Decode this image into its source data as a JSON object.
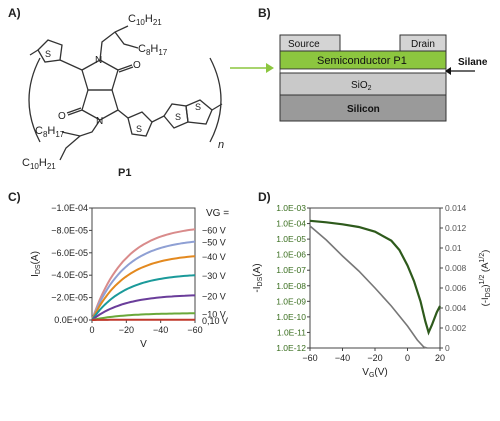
{
  "panels": {
    "a": {
      "label": "A)"
    },
    "b": {
      "label": "B)"
    },
    "c": {
      "label": "C)"
    },
    "d": {
      "label": "D)"
    }
  },
  "molecule": {
    "name": "P1",
    "repeat_n": "n",
    "chain_top": [
      "C",
      "10",
      "H",
      "21"
    ],
    "chain_top2": [
      "C",
      "8",
      "H",
      "17"
    ],
    "chain_bot": [
      "C",
      "8",
      "H",
      "17"
    ],
    "chain_bot2": [
      "C",
      "10",
      "H",
      "21"
    ],
    "atoms": {
      "N1": "N",
      "N2": "N",
      "O1": "O",
      "O2": "O",
      "S1": "S",
      "S2": "S",
      "S3": "S",
      "S4": "S"
    }
  },
  "device": {
    "source": "Source",
    "drain": "Drain",
    "semiconductor": "Semiconductor P1",
    "silane": "Silane",
    "sio2": "SiO",
    "sio2_sub": "2",
    "silicon": "Silicon",
    "colors": {
      "semiconductor": "#8cc63f",
      "electrode": "#d4d4d4",
      "silicon": "#9a9a9a",
      "sio2": "#c9c9c9",
      "arrow": "#8cc63f"
    }
  },
  "chart_data": [
    {
      "type": "line",
      "ylabel": "I",
      "ylabel_sub": "DS",
      "ylabel_unit": "(A)",
      "xlabel": "V",
      "legend_title": "VG =",
      "x_ticks": [
        "0",
        "−20",
        "−40",
        "−60"
      ],
      "y_ticks": [
        "0.0E+00",
        "−2.0E-05",
        "−4.0E-05",
        "−6.0E-05",
        "−8.0E-05",
        "−1.0E-04"
      ],
      "xlim": [
        0,
        -60
      ],
      "ylim": [
        0,
        -0.0001
      ],
      "series": [
        {
          "name": "−60 V",
          "sat": -8.1e-05,
          "color": "#d98b8b"
        },
        {
          "name": "−50 V",
          "sat": -7e-05,
          "color": "#8fa0d4"
        },
        {
          "name": "−40 V",
          "sat": -5.7e-05,
          "color": "#e3891f"
        },
        {
          "name": "−30 V",
          "sat": -4e-05,
          "color": "#1b9a9a"
        },
        {
          "name": "−20 V",
          "sat": -2.2e-05,
          "color": "#6a3d9a"
        },
        {
          "name": "−10 V",
          "sat": -6e-06,
          "color": "#6aa83a"
        },
        {
          "name": "0,10 V",
          "sat": -3e-07,
          "color": "#c0392b"
        }
      ]
    },
    {
      "type": "line",
      "ylabel_left": "-I",
      "ylabel_left_sub": "DS",
      "ylabel_left_unit": "(A)",
      "ylabel_right": "(-I",
      "ylabel_right_sub": "DS",
      "ylabel_right_rest": ")",
      "ylabel_right_sup": "1/2",
      "ylabel_right_unit": " (A",
      "ylabel_right_unit_sup": "1/2",
      "ylabel_right_unit_end": ")",
      "xlabel": "V",
      "xlabel_sub": "G",
      "xlabel_unit": "(V)",
      "x_ticks": [
        "−60",
        "−40",
        "−20",
        "0",
        "20"
      ],
      "y_left_ticks": [
        "1.0E-03",
        "1.0E-04",
        "1.0E-05",
        "1.0E-06",
        "1.0E-07",
        "1.0E-08",
        "1.0E-09",
        "1.0E-10",
        "1.0E-11",
        "1.0E-12"
      ],
      "y_right_ticks": [
        "0.014",
        "0.012",
        "0.01",
        "0.008",
        "0.006",
        "0.004",
        "0.002",
        "0"
      ],
      "xlim": [
        -60,
        20
      ],
      "y_left_log_range": [
        -12,
        -3
      ],
      "y_right_range": [
        0,
        0.014
      ],
      "log_curve": {
        "color": "#2e5a1c",
        "points": [
          [
            -60,
            0.00015
          ],
          [
            -50,
            0.00012
          ],
          [
            -40,
            9e-05
          ],
          [
            -30,
            6e-05
          ],
          [
            -20,
            3e-05
          ],
          [
            -10,
            8e-06
          ],
          [
            -5,
            2e-06
          ],
          [
            0,
            2e-07
          ],
          [
            4,
            2e-08
          ],
          [
            8,
            1e-09
          ],
          [
            11,
            5e-11
          ],
          [
            13,
            1e-11
          ],
          [
            15,
            3e-11
          ],
          [
            18,
            2e-10
          ],
          [
            20,
            5e-10
          ]
        ]
      },
      "sqrt_curve": {
        "color": "#777777",
        "points": [
          [
            -60,
            0.0122
          ],
          [
            -50,
            0.0108
          ],
          [
            -40,
            0.0092
          ],
          [
            -30,
            0.0077
          ],
          [
            -20,
            0.006
          ],
          [
            -10,
            0.0042
          ],
          [
            0,
            0.0022
          ],
          [
            6,
            0.0008
          ],
          [
            10,
            0.0001
          ],
          [
            12,
            0.0
          ]
        ]
      }
    }
  ]
}
